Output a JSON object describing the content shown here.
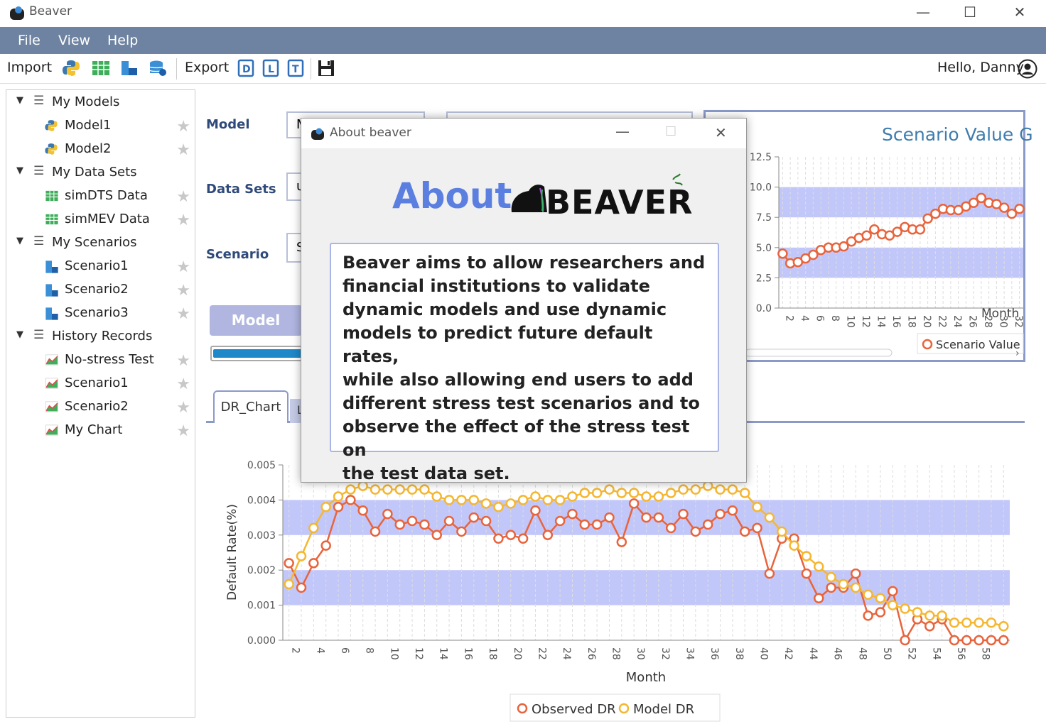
{
  "window": {
    "title": "Beaver"
  },
  "menu": [
    "File",
    "View",
    "Help"
  ],
  "toolbar": {
    "import_label": "Import",
    "export_label": "Export",
    "greeting": "Hello, Danny"
  },
  "sidebar": {
    "groups": [
      {
        "label": "My Models",
        "items": [
          "Model1",
          "Model2"
        ]
      },
      {
        "label": "My Data Sets",
        "items": [
          "simDTS Data",
          "simMEV Data"
        ]
      },
      {
        "label": "My Scenarios",
        "items": [
          "Scenario1",
          "Scenario2",
          "Scenario3"
        ]
      },
      {
        "label": "History Records",
        "items": [
          "No-stress Test",
          "Scenario1",
          "Scenario2",
          "My Chart"
        ]
      }
    ]
  },
  "form": {
    "model_label": "Model",
    "datasets_label": "Data Sets",
    "scenario_label": "Scenario",
    "model_value": "M",
    "datasets_value": "u",
    "scenario_value": "S",
    "model_button": "Model"
  },
  "tabs": [
    "DR_Chart",
    "L"
  ],
  "dialog": {
    "title": "About beaver",
    "heading": "About",
    "logo_text": "BEAVER",
    "body_lines": [
      "Beaver aims to allow researchers and",
      "financial institutions to validate",
      "dynamic models and use dynamic",
      "models to predict future default rates,",
      "while also allowing end users to add",
      "different stress test scenarios and to",
      "observe the effect of the stress test on",
      "the test data set."
    ]
  },
  "colors": {
    "menubar": "#6e83a1",
    "accent": "#5b7fe0",
    "band": "#b7bdf8",
    "observed": "#e8643c",
    "model": "#f5b731"
  },
  "chart_data": [
    {
      "type": "line",
      "title": "Scenario Value G",
      "xlabel": "Month",
      "ylim": [
        0,
        12.5
      ],
      "yticks": [
        "0.0",
        "2.5",
        "5.0",
        "7.5",
        "10.0",
        "12.5"
      ],
      "xticks": [
        "2",
        "4",
        "6",
        "8",
        "10",
        "12",
        "14",
        "16",
        "18",
        "20",
        "22",
        "24",
        "26",
        "28",
        "30",
        "32"
      ],
      "x": [
        2,
        3,
        4,
        5,
        6,
        7,
        8,
        9,
        10,
        11,
        12,
        13,
        14,
        15,
        16,
        17,
        18,
        19,
        20,
        21,
        22,
        23,
        24,
        25,
        26,
        27,
        28,
        29,
        30,
        31,
        32,
        33
      ],
      "series": [
        {
          "name": "Scenario Value",
          "values": [
            4.5,
            3.7,
            3.8,
            4.1,
            4.4,
            4.8,
            5.0,
            5.0,
            5.1,
            5.5,
            5.8,
            6.0,
            6.5,
            6.1,
            6.0,
            6.3,
            6.7,
            6.5,
            6.5,
            7.4,
            7.8,
            8.2,
            8.1,
            8.1,
            8.4,
            8.7,
            9.1,
            8.7,
            8.6,
            8.3,
            7.8,
            8.2
          ]
        }
      ]
    },
    {
      "type": "line",
      "xlabel": "Month",
      "ylabel": "Default Rate(%)",
      "ylim": [
        0,
        0.005
      ],
      "yticks": [
        "0.000",
        "0.001",
        "0.002",
        "0.003",
        "0.004",
        "0.005"
      ],
      "xticks": [
        "2",
        "4",
        "6",
        "8",
        "10",
        "12",
        "14",
        "16",
        "18",
        "20",
        "22",
        "24",
        "26",
        "28",
        "30",
        "32",
        "34",
        "36",
        "38",
        "40",
        "42",
        "44",
        "46",
        "48",
        "50",
        "52",
        "54",
        "56",
        "58"
      ],
      "x": [
        2,
        3,
        4,
        5,
        6,
        7,
        8,
        9,
        10,
        11,
        12,
        13,
        14,
        15,
        16,
        17,
        18,
        19,
        20,
        21,
        22,
        23,
        24,
        25,
        26,
        27,
        28,
        29,
        30,
        31,
        32,
        33,
        34,
        35,
        36,
        37,
        38,
        39,
        40,
        41,
        42,
        43,
        44,
        45,
        46,
        47,
        48,
        49,
        50,
        51,
        52,
        53,
        54,
        55,
        56,
        57,
        58,
        59,
        60
      ],
      "series": [
        {
          "name": "Observed DR",
          "values": [
            0.0022,
            0.0015,
            0.0022,
            0.0027,
            0.0038,
            0.004,
            0.0037,
            0.0031,
            0.0036,
            0.0033,
            0.0034,
            0.0033,
            0.003,
            0.0034,
            0.0031,
            0.0035,
            0.0034,
            0.0029,
            0.003,
            0.0029,
            0.0037,
            0.003,
            0.0034,
            0.0036,
            0.0033,
            0.0033,
            0.0035,
            0.0028,
            0.0039,
            0.0035,
            0.0035,
            0.0032,
            0.0036,
            0.0031,
            0.0033,
            0.0036,
            0.0037,
            0.0031,
            0.0032,
            0.0019,
            0.0029,
            0.0029,
            0.0019,
            0.0012,
            0.0015,
            0.0015,
            0.0019,
            0.0007,
            0.0008,
            0.0014,
            0.0,
            0.0006,
            0.0004,
            0.0006,
            0.0,
            0.0,
            0.0,
            0.0,
            0.0
          ]
        },
        {
          "name": "Model DR",
          "values": [
            0.0016,
            0.0024,
            0.0032,
            0.0038,
            0.0041,
            0.0043,
            0.0044,
            0.0043,
            0.0043,
            0.0043,
            0.0043,
            0.0043,
            0.0041,
            0.004,
            0.004,
            0.004,
            0.0039,
            0.0038,
            0.0039,
            0.004,
            0.0041,
            0.004,
            0.004,
            0.0041,
            0.0042,
            0.0042,
            0.0043,
            0.0042,
            0.0042,
            0.0041,
            0.0041,
            0.0042,
            0.0043,
            0.0043,
            0.0044,
            0.0043,
            0.0043,
            0.0042,
            0.0038,
            0.0035,
            0.0031,
            0.0027,
            0.0024,
            0.0021,
            0.0018,
            0.0016,
            0.0015,
            0.0013,
            0.0012,
            0.001,
            0.0009,
            0.0008,
            0.0007,
            0.0007,
            0.0005,
            0.0005,
            0.0005,
            0.0005,
            0.0004
          ]
        }
      ],
      "legend": "bottom"
    }
  ]
}
